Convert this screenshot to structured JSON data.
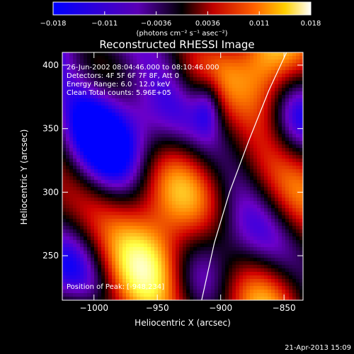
{
  "colorbar": {
    "ticks": [
      "-0.018",
      "-0.011",
      "-0.0036",
      "0.0036",
      "0.011",
      "0.018"
    ],
    "units_label": "(photons cm⁻² s⁻¹ asec⁻²)"
  },
  "chart_data": {
    "type": "heatmap",
    "title": "Reconstructed RHESSI Image",
    "xlabel": "Heliocentric X (arcsec)",
    "ylabel": "Heliocentric Y (arcsec)",
    "xlim": [
      -1025,
      -835
    ],
    "ylim": [
      215,
      410
    ],
    "xticks": [
      -1000,
      -950,
      -900,
      -850
    ],
    "yticks": [
      250,
      300,
      350,
      400
    ],
    "xtick_labels": [
      "−1000",
      "−950",
      "−900",
      "−850"
    ],
    "ytick_labels": [
      "250",
      "300",
      "350",
      "400"
    ],
    "value_range": [
      -0.018,
      0.018
    ],
    "colormap": [
      "#0000ff",
      "#6a00c8",
      "#000000",
      "#d00000",
      "#ff8000",
      "#ffff40",
      "#ffffff"
    ],
    "limb_curve": [
      [
        -915,
        215
      ],
      [
        -905,
        260
      ],
      [
        -893,
        300
      ],
      [
        -878,
        340
      ],
      [
        -862,
        380
      ],
      [
        -848,
        410
      ]
    ],
    "annotations": {
      "time": "26-Jun-2002 08:04:46.000 to 08:10:46.000",
      "detectors": "Detectors: 4F 5F 6F 7F 8F, Att 0",
      "energy": "Energy Range: 6.0 - 12.0 keV",
      "clean": "Clean     Total counts: 5.96E+05",
      "peak": "Position of Peak: [-948,234]"
    }
  },
  "footer_date": "21-Apr-2013 15:09"
}
